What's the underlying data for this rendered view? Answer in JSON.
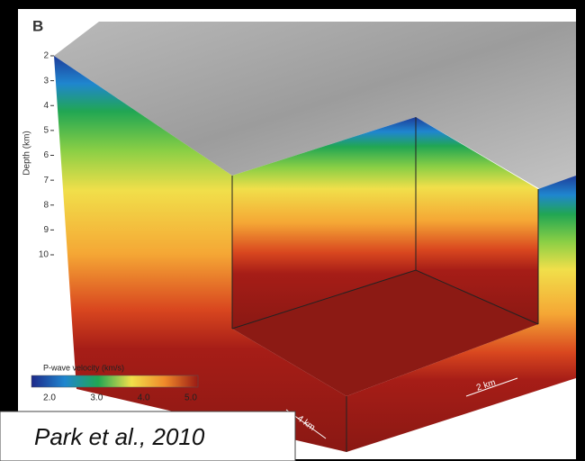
{
  "panel_label": "B",
  "depth_axis": {
    "label": "Depth (km)",
    "ticks": [
      "2",
      "3",
      "4",
      "5",
      "6",
      "7",
      "8",
      "9",
      "10"
    ]
  },
  "colorbar": {
    "title": "P-wave velocity (km/s)",
    "ticks": [
      "2.0",
      "3.0",
      "4.0",
      "5.0"
    ]
  },
  "scale_bars": [
    "2 km",
    "4 km"
  ],
  "caption": "Park et al., 2010"
}
